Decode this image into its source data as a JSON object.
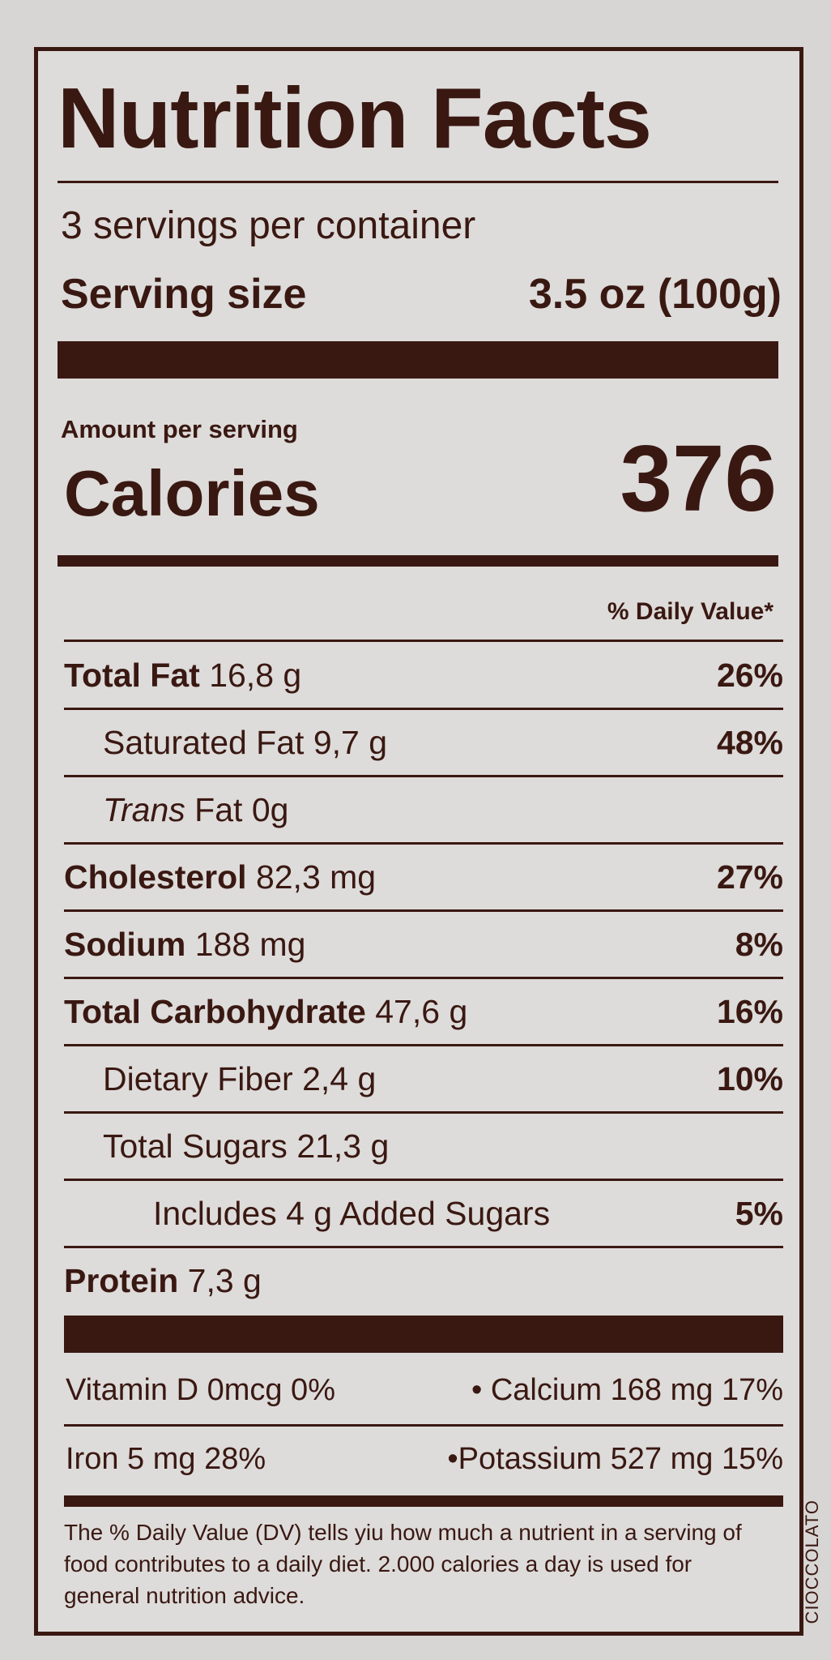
{
  "title": "Nutrition Facts",
  "servings_per_container": "3 servings per container",
  "serving_size_label": "Serving size",
  "serving_size_value": "3.5 oz (100g)",
  "amount_per_serving": "Amount per serving",
  "calories_label": "Calories",
  "calories_value": "376",
  "dv_header": "% Daily Value*",
  "nutrients": [
    {
      "name": "Total Fat",
      "amount": "16,8 g",
      "dv": "26%"
    },
    {
      "name": "Saturated Fat",
      "amount": "9,7 g",
      "dv": "48%"
    },
    {
      "name_italic": "Trans",
      "name": "Fat",
      "amount": "0g",
      "dv": ""
    },
    {
      "name": "Cholesterol",
      "amount": "82,3 mg",
      "dv": "27%"
    },
    {
      "name": "Sodium",
      "amount": "188 mg",
      "dv": "8%"
    },
    {
      "name": "Total Carbohydrate",
      "amount": "47,6 g",
      "dv": "16%"
    },
    {
      "name": "Dietary Fiber",
      "amount": "2,4 g",
      "dv": "10%"
    },
    {
      "name": "Total Sugars",
      "amount": "21,3 g",
      "dv": ""
    },
    {
      "name": "Includes 4 g Added Sugars",
      "amount": "",
      "dv": "5%"
    },
    {
      "name": "Protein",
      "amount": "7,3 g",
      "dv": ""
    }
  ],
  "vitamins": {
    "row1_left": "Vitamin D 0mcg 0%",
    "row1_right": "• Calcium 168 mg 17%",
    "row2_left": "Iron 5 mg 28%",
    "row2_right": "•Potassium 527 mg 15%"
  },
  "footnote": "The % Daily Value (DV) tells yiu how much a nutrient in a serving of food contributes to a daily diet. 2.000 calories a day is used for general nutrition advice.",
  "side_text": "CIOCCOLATO",
  "colors": {
    "ink": "#3a1812",
    "paper": "#dddcda"
  }
}
